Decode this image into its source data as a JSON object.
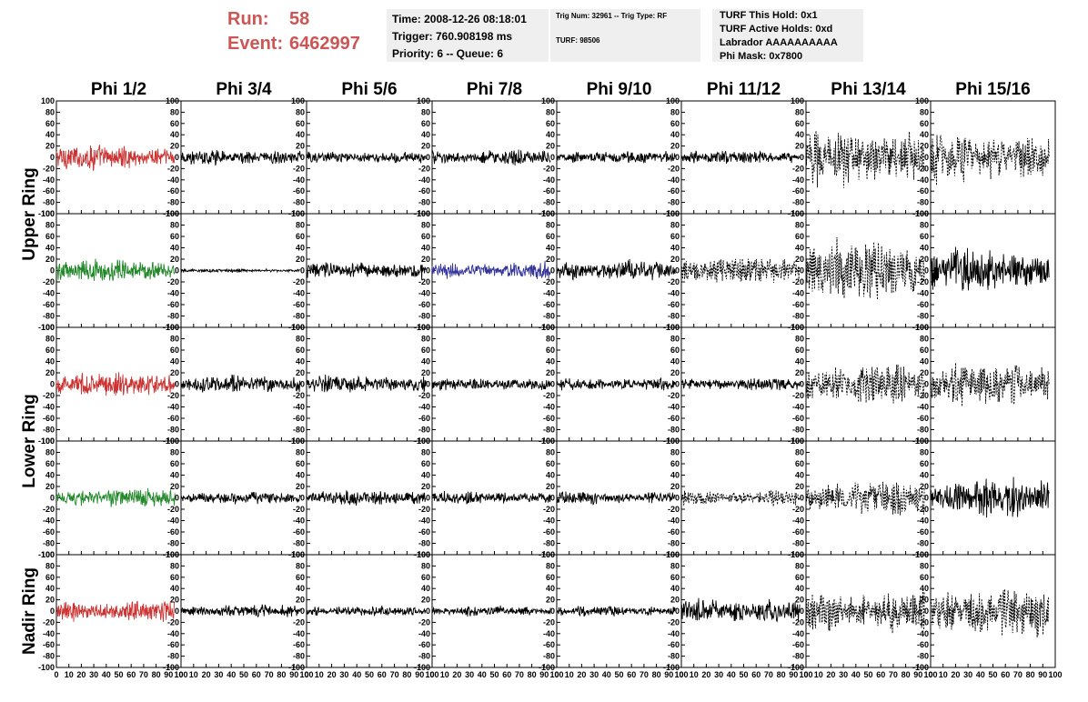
{
  "header": {
    "run_label": "Run:",
    "run_value": "58",
    "event_label": "Event:",
    "event_value": "6462997",
    "time_line": "Time: 2008-12-26 08:18:01",
    "trigger_line": "Trigger: 760.908198 ms",
    "priority_line": "Priority: 6 -- Queue: 6",
    "trig_num_line": "Trig Num: 32961 -- Trig Type: RF",
    "turf_line": "TURF: 98506",
    "turf_hold_line": "TURF This Hold: 0x1",
    "turf_active_line": "TURF Active Holds: 0xd",
    "labrador_line": "Labrador AAAAAAAAAA",
    "phi_mask_line": "Phi Mask: 0x7800"
  },
  "chart_data": {
    "type": "line",
    "columns": [
      "Phi 1/2",
      "Phi 3/4",
      "Phi 5/6",
      "Phi 7/8",
      "Phi 9/10",
      "Phi 11/12",
      "Phi 13/14",
      "Phi 15/16"
    ],
    "row_groups": [
      "Upper Ring",
      "Lower Ring",
      "Nadir Ring"
    ],
    "rows": 5,
    "xlim": [
      0,
      100
    ],
    "ylim": [
      -100,
      100
    ],
    "x_ticks": [
      0,
      10,
      20,
      30,
      40,
      50,
      60,
      70,
      80,
      90,
      100
    ],
    "x_tick_labels": [
      "0",
      "10",
      "20",
      "30",
      "40",
      "50",
      "60",
      "70",
      "80",
      "90",
      "100"
    ],
    "y_ticks": [
      -100,
      -80,
      -60,
      -40,
      -20,
      0,
      20,
      40,
      60,
      80,
      100
    ],
    "y_tick_labels": [
      "-100",
      "-80",
      "-60",
      "-40",
      "-20",
      "0",
      "20",
      "40",
      "60",
      "80",
      "100"
    ],
    "waveform_x_range": [
      0,
      95
    ],
    "panel_amplitudes": [
      [
        20,
        12,
        10,
        12,
        10,
        10,
        45,
        40
      ],
      [
        18,
        3,
        14,
        14,
        16,
        22,
        50,
        35
      ],
      [
        20,
        14,
        14,
        10,
        10,
        10,
        32,
        35
      ],
      [
        15,
        10,
        12,
        10,
        10,
        12,
        28,
        30
      ],
      [
        18,
        10,
        8,
        8,
        8,
        20,
        35,
        40
      ]
    ],
    "panel_colors": [
      [
        "#cc3333",
        "#000000",
        "#000000",
        "#000000",
        "#000000",
        "#000000",
        "#000000",
        "#000000"
      ],
      [
        "#22882a",
        "#000000",
        "#000000",
        "#333399",
        "#000000",
        "#000000",
        "#000000",
        "#000000"
      ],
      [
        "#cc3333",
        "#000000",
        "#000000",
        "#000000",
        "#000000",
        "#000000",
        "#000000",
        "#000000"
      ],
      [
        "#22882a",
        "#000000",
        "#000000",
        "#000000",
        "#000000",
        "#000000",
        "#000000",
        "#000000"
      ],
      [
        "#cc3333",
        "#000000",
        "#000000",
        "#000000",
        "#000000",
        "#000000",
        "#000000",
        "#000000"
      ]
    ],
    "panel_dashed": [
      [
        false,
        false,
        false,
        false,
        false,
        false,
        true,
        true
      ],
      [
        false,
        false,
        false,
        false,
        false,
        true,
        true,
        false
      ],
      [
        false,
        false,
        false,
        false,
        false,
        false,
        true,
        true
      ],
      [
        false,
        false,
        false,
        false,
        false,
        true,
        true,
        false
      ],
      [
        false,
        false,
        false,
        false,
        false,
        false,
        true,
        true
      ]
    ],
    "colors": {
      "header_red": "#cc5555",
      "info_box": "#efefef"
    }
  }
}
